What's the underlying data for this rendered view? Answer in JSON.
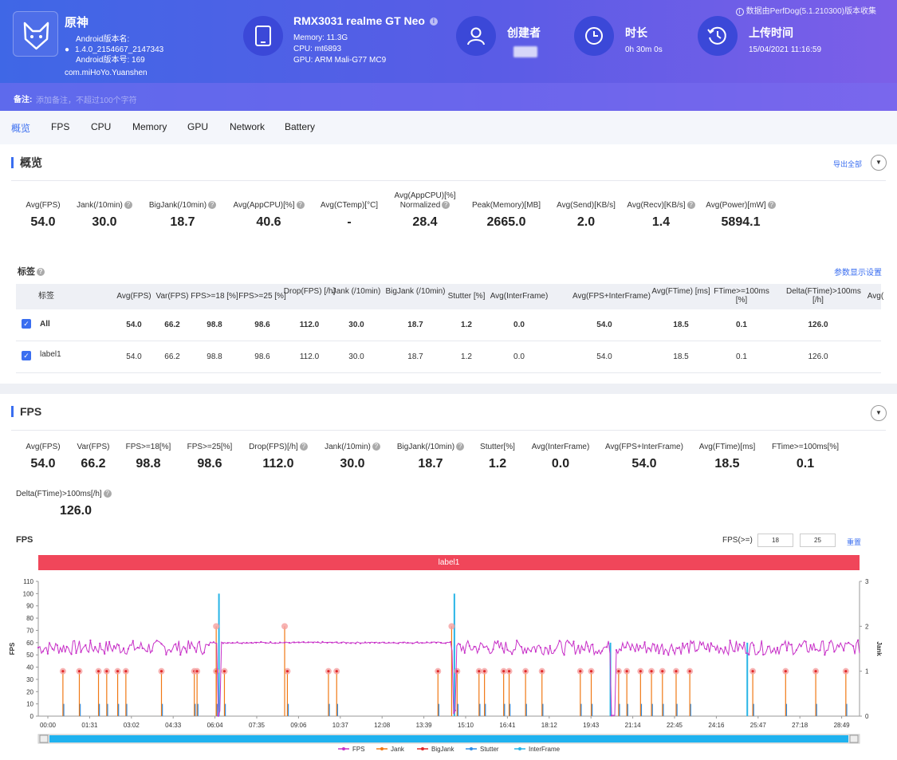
{
  "header": {
    "version_note": "数据由PerfDog(5.1.210300)版本收集",
    "app": {
      "name": "原神",
      "version_name_label": "Android版本名:",
      "version_name": "1.4.0_2154667_2147343",
      "version_code": "Android版本号: 169",
      "package": "com.miHoYo.Yuanshen"
    },
    "device": {
      "title": "RMX3031 realme GT Neo",
      "memory": "Memory: 11.3G",
      "cpu": "CPU: mt6893",
      "gpu": "GPU: ARM Mali-G77 MC9"
    },
    "creator": {
      "title": "创建者"
    },
    "duration": {
      "title": "时长",
      "value": "0h 30m 0s"
    },
    "upload": {
      "title": "上传时间",
      "value": "15/04/2021 11:16:59"
    },
    "note": {
      "label": "备注:",
      "placeholder": "添加备注，不超过100个字符"
    }
  },
  "tabs": [
    "概览",
    "FPS",
    "CPU",
    "Memory",
    "GPU",
    "Network",
    "Battery"
  ],
  "overview": {
    "title": "概览",
    "export": "导出全部",
    "metrics": [
      {
        "k": "Avg(FPS)",
        "v": "54.0"
      },
      {
        "k": "Jank(/10min)",
        "v": "30.0"
      },
      {
        "k": "BigJank(/10min)",
        "v": "18.7"
      },
      {
        "k": "Avg(AppCPU)[%]",
        "v": "40.6"
      },
      {
        "k": "Avg(CTemp)[°C]",
        "v": "-"
      },
      {
        "k": "Avg(AppCPU)[%]",
        "k2": "Normalized",
        "v": "28.4"
      },
      {
        "k": "Peak(Memory)[MB]",
        "v": "2665.0"
      },
      {
        "k": "Avg(Send)[KB/s]",
        "v": "2.0"
      },
      {
        "k": "Avg(Recv)[KB/s]",
        "v": "1.4"
      },
      {
        "k": "Avg(Power)[mW]",
        "v": "5894.1"
      }
    ],
    "labels_title": "标签",
    "param_settings": "参数显示设置",
    "table": {
      "headers": [
        "标签",
        "Avg(FPS)",
        "Var(FPS)",
        "FPS>=18 [%]",
        "FPS>=25 [%]",
        "Drop(FPS) [/h]",
        "Jank (/10min)",
        "BigJank (/10min)",
        "Stutter [%]",
        "Avg(InterFrame)",
        "Avg(FPS+InterFrame)",
        "Avg(FTime) [ms]",
        "FTime>=100ms [%]",
        "Delta(FTime)>100ms [/h]",
        "Avg("
      ],
      "rows": [
        [
          "All",
          "54.0",
          "66.2",
          "98.8",
          "98.6",
          "112.0",
          "30.0",
          "18.7",
          "1.2",
          "0.0",
          "54.0",
          "18.5",
          "0.1",
          "126.0"
        ],
        [
          "label1",
          "54.0",
          "66.2",
          "98.8",
          "98.6",
          "112.0",
          "30.0",
          "18.7",
          "1.2",
          "0.0",
          "54.0",
          "18.5",
          "0.1",
          "126.0"
        ]
      ]
    }
  },
  "fps_section": {
    "title": "FPS",
    "metrics": [
      {
        "k": "Avg(FPS)",
        "v": "54.0"
      },
      {
        "k": "Var(FPS)",
        "v": "66.2"
      },
      {
        "k": "FPS>=18[%]",
        "v": "98.8"
      },
      {
        "k": "FPS>=25[%]",
        "v": "98.6"
      },
      {
        "k": "Drop(FPS)[/h]",
        "v": "112.0"
      },
      {
        "k": "Jank(/10min)",
        "v": "30.0"
      },
      {
        "k": "BigJank(/10min)",
        "v": "18.7"
      },
      {
        "k": "Stutter[%]",
        "v": "1.2"
      },
      {
        "k": "Avg(InterFrame)",
        "v": "0.0"
      },
      {
        "k": "Avg(FPS+InterFrame)",
        "v": "54.0"
      },
      {
        "k": "Avg(FTime)[ms]",
        "v": "18.5"
      },
      {
        "k": "FTime>=100ms[%]",
        "v": "0.1"
      },
      {
        "k": "Delta(FTime)>100ms[/h]",
        "v": "126.0"
      }
    ],
    "chart_title": "FPS",
    "fps_ge_label": "FPS(>=)",
    "fps_ge_values": [
      "18",
      "25"
    ],
    "reset": "重置",
    "banner": "label1"
  },
  "chart_data": {
    "type": "line",
    "ylabel": "FPS",
    "y2label": "Jank",
    "ylim": [
      0,
      110
    ],
    "y2lim": [
      0,
      3
    ],
    "yticks": [
      0,
      10,
      20,
      30,
      40,
      50,
      60,
      70,
      80,
      90,
      100,
      110
    ],
    "y2ticks": [
      0,
      1,
      2,
      3
    ],
    "xticks": [
      "00:00",
      "01:31",
      "03:02",
      "04:33",
      "06:04",
      "07:35",
      "09:06",
      "10:37",
      "12:08",
      "13:39",
      "15:10",
      "16:41",
      "18:12",
      "19:43",
      "21:14",
      "22:45",
      "24:16",
      "25:47",
      "27:18",
      "28:49"
    ],
    "x_range_min": [
      0,
      1800
    ],
    "fps_series_summary": {
      "typical_low": 50,
      "typical_high": 62,
      "flat_plateau": 60,
      "plateau_range_min": [
        6.3,
        15.1
      ],
      "drops_at_min": [
        6.6,
        15.2,
        21.0
      ],
      "drop_value": 0
    },
    "jank_min": [
      0.9,
      1.5,
      2.2,
      2.5,
      2.9,
      3.2,
      4.5,
      5.7,
      5.8,
      6.5,
      6.8,
      9.1,
      10.6,
      10.9,
      14.6,
      15.3,
      16.1,
      16.3,
      17.0,
      17.2,
      17.8,
      18.4,
      19.8,
      20.2,
      21.2,
      21.5,
      22.0,
      22.4,
      22.8,
      23.3,
      23.8,
      26.1,
      27.3,
      28.4,
      29.5
    ],
    "bigjank_min": [
      6.5,
      9.0,
      15.1
    ],
    "stutter_spikes_min": [
      6.6,
      15.2,
      20.9,
      25.9
    ],
    "legend": [
      "FPS",
      "Jank",
      "BigJank",
      "Stutter",
      "InterFrame"
    ],
    "colors": {
      "FPS": "#c832c8",
      "Jank": "#f07814",
      "BigJank": "#e02828",
      "Stutter": "#2f8ee6",
      "InterFrame": "#28b4e6"
    }
  }
}
